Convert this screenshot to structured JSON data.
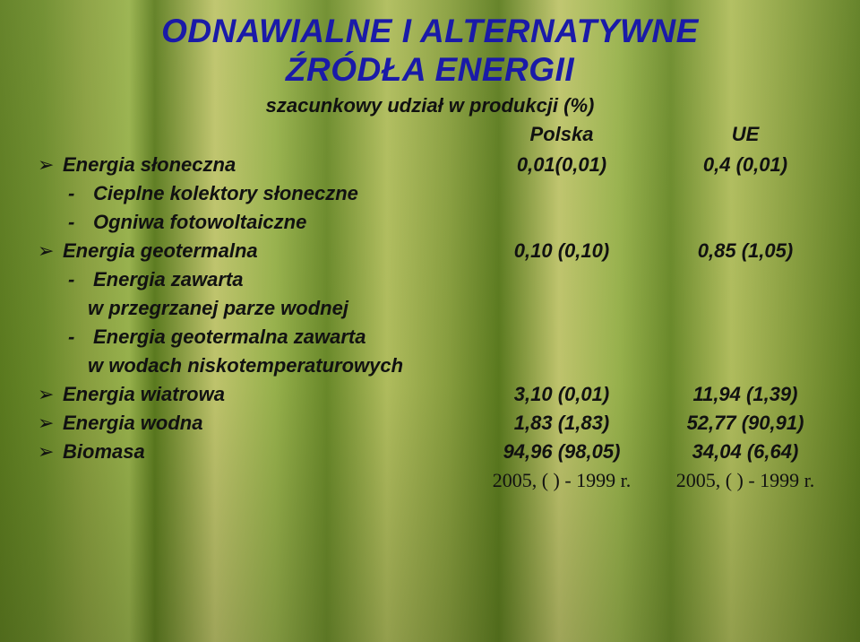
{
  "title_line1": "ODNAWIALNE I ALTERNATYWNE",
  "title_line2": "ŹRÓDŁA ENERGII",
  "subtitle": "szacunkowy udział w produkcji (%)",
  "col_pl": "Polska",
  "col_ue": "UE",
  "rows": {
    "solar": {
      "label": "Energia słoneczna",
      "pl": "0,01(0,01)",
      "ue": "0,4 (0,01)"
    },
    "solar_sub1": {
      "label": "Cieplne kolektory słoneczne"
    },
    "solar_sub2": {
      "label": "Ogniwa fotowoltaiczne"
    },
    "geo": {
      "label": "Energia geotermalna",
      "pl": "0,10 (0,10)",
      "ue": "0,85 (1,05)"
    },
    "geo_sub1": {
      "label": "Energia zawarta"
    },
    "geo_sub1b": {
      "label": "w przegrzanej parze wodnej"
    },
    "geo_sub2": {
      "label": "Energia geotermalna zawarta"
    },
    "geo_sub2b": {
      "label": "w wodach niskotemperaturowych"
    },
    "wind": {
      "label": "Energia wiatrowa",
      "pl": "3,10 (0,01)",
      "ue": "11,94 (1,39)"
    },
    "water": {
      "label": "Energia wodna",
      "pl": "1,83 (1,83)",
      "ue": "52,77 (90,91)"
    },
    "biomass": {
      "label": "Biomasa",
      "pl": "94,96 (98,05)",
      "ue": "34,04 (6,64)"
    }
  },
  "footnote_pl": "2005, ( ) - 1999 r.",
  "footnote_ue": "2005, ( ) - 1999 r.",
  "bullet_glyph": "➢",
  "dash_glyph": "-"
}
